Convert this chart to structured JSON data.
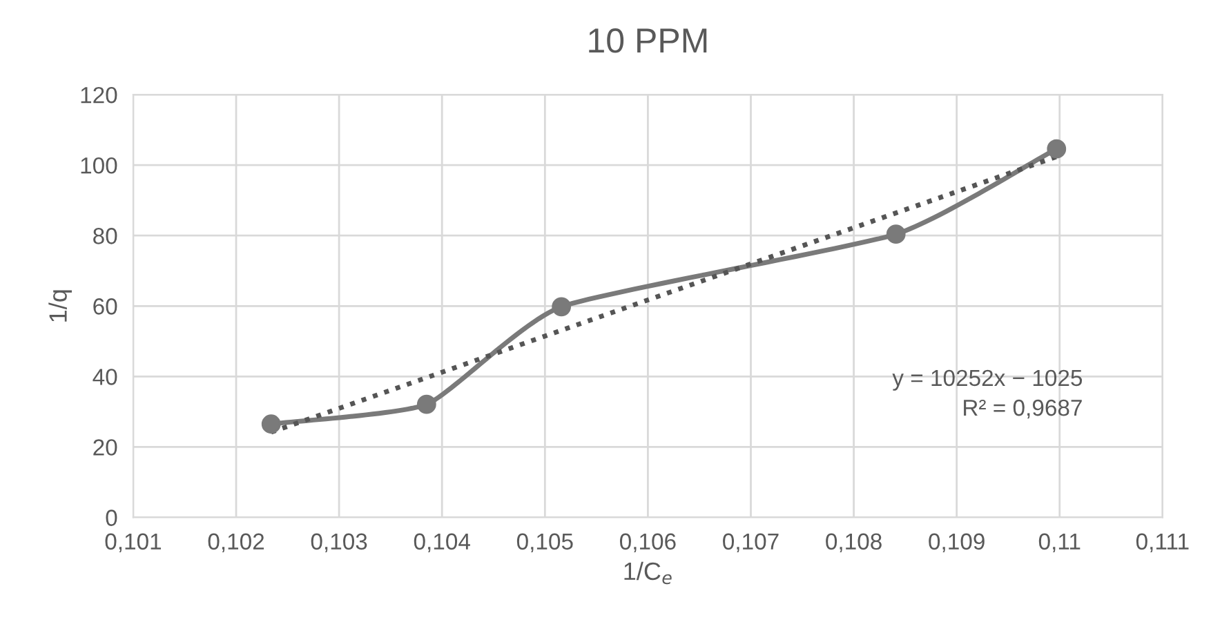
{
  "chart_data": {
    "type": "line",
    "title": "10 PPM",
    "xlabel": "1/C$_{e}$",
    "ylabel": "1/q",
    "xlim": [
      0.101,
      0.111
    ],
    "xticks": [
      {
        "value": 0.101,
        "label": "0,101"
      },
      {
        "value": 0.102,
        "label": "0,102"
      },
      {
        "value": 0.103,
        "label": "0,103"
      },
      {
        "value": 0.104,
        "label": "0,104"
      },
      {
        "value": 0.105,
        "label": "0,105"
      },
      {
        "value": 0.106,
        "label": "0,106"
      },
      {
        "value": 0.107,
        "label": "0,107"
      },
      {
        "value": 0.108,
        "label": "0,108"
      },
      {
        "value": 0.109,
        "label": "0,109"
      },
      {
        "value": 0.11,
        "label": "0,11"
      },
      {
        "value": 0.111,
        "label": "0,111"
      }
    ],
    "ylim": [
      0,
      120
    ],
    "yticks": [
      0,
      20,
      40,
      60,
      80,
      100,
      120
    ],
    "grid": true,
    "marker": "circle",
    "line_style": "solid",
    "series": [
      {
        "color": "#7a7a7a",
        "x": [
          0.10234,
          0.10385,
          0.10516,
          0.10841,
          0.10997
        ],
        "values": [
          26.5,
          32.1,
          59.8,
          80.4,
          104.6
        ]
      },
      {
        "color": "#555555",
        "x": [
          0.10234,
          0.10997
        ],
        "values": [
          24.2,
          102.4
        ],
        "marker": "none",
        "line_style": "dotted"
      }
    ],
    "annotations": [
      "y = 10252x − 1025\nR² = 0,9687"
    ]
  }
}
